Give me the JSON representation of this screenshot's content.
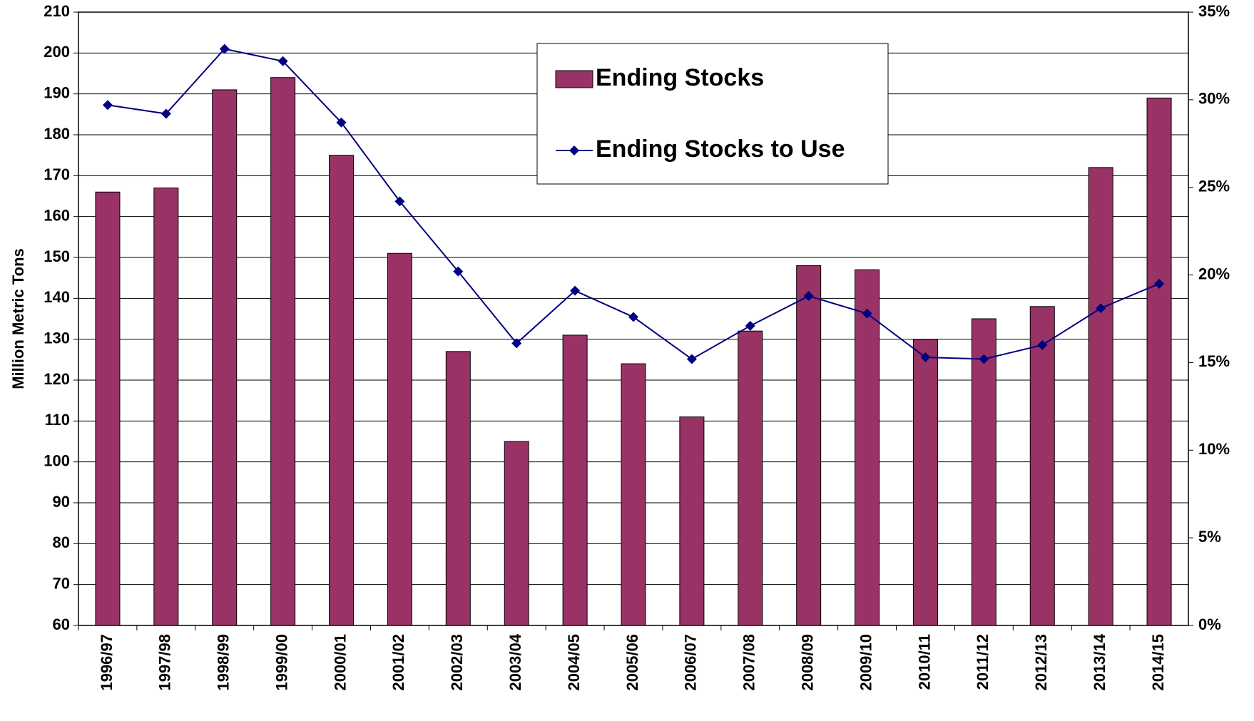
{
  "chart_data": {
    "type": "bar",
    "y_label": "Million Metric Tons",
    "categories": [
      "1996/97",
      "1997/98",
      "1998/99",
      "1999/00",
      "2000/01",
      "2001/02",
      "2002/03",
      "2003/04",
      "2004/05",
      "2005/06",
      "2006/07",
      "2007/08",
      "2008/09",
      "2009/10",
      "2010/11",
      "2011/12",
      "2012/13",
      "2013/14",
      "2014/15"
    ],
    "series": [
      {
        "name": "Ending Stocks",
        "type": "bar",
        "color": "#993366",
        "values": [
          166,
          167,
          191,
          194,
          175,
          151,
          127,
          105,
          131,
          124,
          111,
          132,
          148,
          147,
          130,
          135,
          138,
          172,
          189
        ]
      },
      {
        "name": "Ending Stocks to Use",
        "type": "line",
        "axis": "y2",
        "color": "#000080",
        "values": [
          29.7,
          29.2,
          32.9,
          32.2,
          28.7,
          24.2,
          20.2,
          16.1,
          19.1,
          17.6,
          15.2,
          17.1,
          18.8,
          17.8,
          15.3,
          15.2,
          16.0,
          18.1,
          19.5
        ]
      }
    ],
    "ylim": [
      60,
      210
    ],
    "yticks": [
      60,
      70,
      80,
      90,
      100,
      110,
      120,
      130,
      140,
      150,
      160,
      170,
      180,
      190,
      200,
      210
    ],
    "y2lim": [
      0,
      35
    ],
    "y2ticks": [
      {
        "value": 0,
        "label": "0%"
      },
      {
        "value": 5,
        "label": "5%"
      },
      {
        "value": 10,
        "label": "10%"
      },
      {
        "value": 15,
        "label": "15%"
      },
      {
        "value": 20,
        "label": "20%"
      },
      {
        "value": 25,
        "label": "25%"
      },
      {
        "value": 30,
        "label": "30%"
      },
      {
        "value": 35,
        "label": "35%"
      }
    ],
    "grid": true,
    "legend": "upper center"
  }
}
